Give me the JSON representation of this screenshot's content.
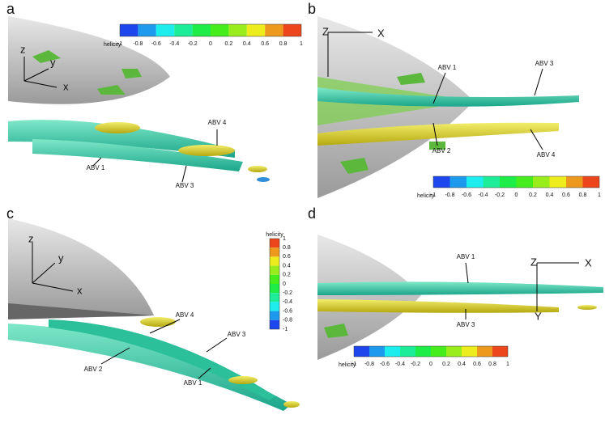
{
  "panels": [
    {
      "label": "a",
      "axes": [
        "z",
        "y",
        "x"
      ],
      "annotations": [
        "ABV 4",
        "ABV 1",
        "ABV 3"
      ],
      "colorbar": {
        "title": "helicity",
        "ticks": [
          -1,
          -0.8,
          -0.6,
          -0.4,
          -0.2,
          0,
          0.2,
          0.4,
          0.6,
          0.8,
          1
        ]
      }
    },
    {
      "label": "b",
      "axes": [
        "Z",
        "X"
      ],
      "annotations": [
        "ABV 1",
        "ABV 3",
        "ABV 2",
        "ABV 4"
      ],
      "colorbar": {
        "title": "helicity",
        "ticks": [
          -1,
          -0.8,
          -0.6,
          -0.4,
          -0.2,
          0,
          0.2,
          0.4,
          0.6,
          0.8,
          1
        ]
      }
    },
    {
      "label": "c",
      "axes": [
        "z",
        "y",
        "x"
      ],
      "annotations": [
        "ABV 4",
        "ABV 3",
        "ABV 2",
        "ABV 1"
      ],
      "colorbar": {
        "title": "helicity",
        "ticks": [
          1,
          0.8,
          0.6,
          0.4,
          0.2,
          0,
          -0.2,
          -0.4,
          -0.6,
          -0.8,
          -1
        ]
      }
    },
    {
      "label": "d",
      "axes": [
        "Z",
        "X",
        "Y"
      ],
      "annotations": [
        "ABV 1",
        "ABV 3"
      ],
      "colorbar": {
        "title": "helicity",
        "ticks": [
          -1,
          -0.8,
          -0.6,
          -0.4,
          -0.2,
          0,
          0.2,
          0.4,
          0.6,
          0.8,
          1
        ]
      }
    }
  ]
}
